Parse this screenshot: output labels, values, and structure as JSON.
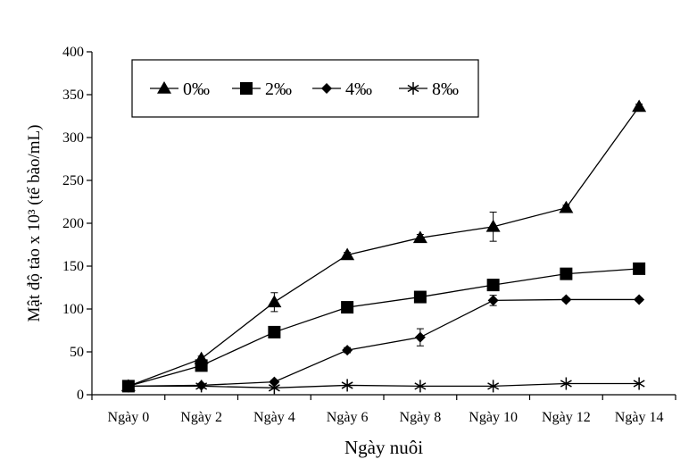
{
  "chart_data": {
    "type": "line",
    "title": "",
    "xlabel": "Ngày nuôi",
    "ylabel": "Mật độ tảo x 10³ (tế bào/mL)",
    "ylim": [
      0,
      400
    ],
    "yticks": [
      0,
      50,
      100,
      150,
      200,
      250,
      300,
      350,
      400
    ],
    "categories": [
      "Ngày 0",
      "Ngày 2",
      "Ngày 4",
      "Ngày 6",
      "Ngày 8",
      "Ngày 10",
      "Ngày 12",
      "Ngày 14"
    ],
    "legend_position": "top-left",
    "series": [
      {
        "name": "0‰",
        "marker": "triangle",
        "values": [
          10,
          42,
          108,
          163,
          183,
          196,
          218,
          336
        ],
        "errors": [
          0,
          3,
          11,
          3,
          4,
          17,
          3,
          3
        ]
      },
      {
        "name": "2‰",
        "marker": "square",
        "values": [
          10,
          34,
          73,
          102,
          114,
          128,
          141,
          147
        ],
        "errors": [
          0,
          2,
          3,
          3,
          3,
          3,
          3,
          3
        ]
      },
      {
        "name": "4‰",
        "marker": "diamond",
        "values": [
          10,
          11,
          15,
          52,
          67,
          110,
          111,
          111
        ],
        "errors": [
          0,
          1,
          2,
          3,
          10,
          6,
          2,
          2
        ]
      },
      {
        "name": "8‰",
        "marker": "asterisk",
        "values": [
          10,
          10,
          8,
          11,
          10,
          10,
          13,
          13
        ],
        "errors": [
          0,
          0,
          0,
          0,
          0,
          0,
          0,
          0
        ]
      }
    ]
  }
}
